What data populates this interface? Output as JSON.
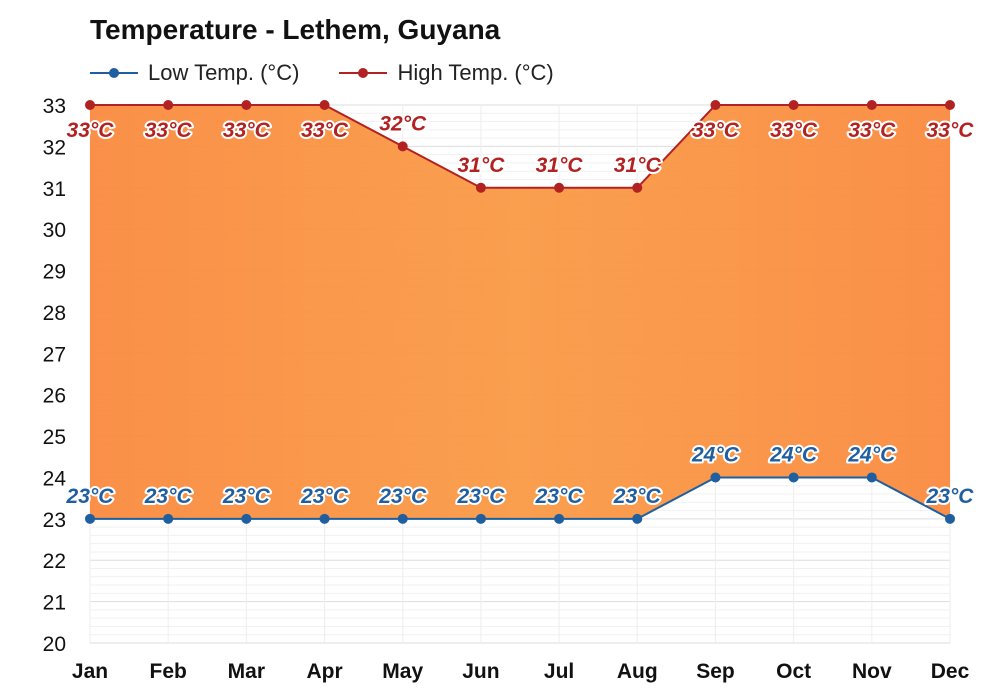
{
  "title": "Temperature - Lethem, Guyana",
  "colors": {
    "low": "#1f5fa0",
    "high": "#b22222",
    "fill_top": "#fa8a3f",
    "fill_mid": "#f99a45",
    "grid": "#e6e6e6"
  },
  "chart_data": {
    "type": "line",
    "title": "Temperature - Lethem, Guyana",
    "categories": [
      "Jan",
      "Feb",
      "Mar",
      "Apr",
      "May",
      "Jun",
      "Jul",
      "Aug",
      "Sep",
      "Oct",
      "Nov",
      "Dec"
    ],
    "series": [
      {
        "name": "Low Temp. (°C)",
        "values": [
          23,
          23,
          23,
          23,
          23,
          23,
          23,
          23,
          24,
          24,
          24,
          23
        ],
        "labels": [
          "23°C",
          "23°C",
          "23°C",
          "23°C",
          "23°C",
          "23°C",
          "23°C",
          "23°C",
          "24°C",
          "24°C",
          "24°C",
          "23°C"
        ]
      },
      {
        "name": "High Temp. (°C)",
        "values": [
          33,
          33,
          33,
          33,
          32,
          31,
          31,
          31,
          33,
          33,
          33,
          33
        ],
        "labels": [
          "33°C",
          "33°C",
          "33°C",
          "33°C",
          "32°C",
          "31°C",
          "31°C",
          "31°C",
          "33°C",
          "33°C",
          "33°C",
          "33°C"
        ]
      }
    ],
    "yticks": [
      "20",
      "21",
      "22",
      "23",
      "24",
      "25",
      "26",
      "27",
      "28",
      "29",
      "30",
      "31",
      "32",
      "33"
    ],
    "ylim": [
      20,
      33
    ],
    "grid": true,
    "legend_position": "top-left",
    "fill_between_series": true
  }
}
